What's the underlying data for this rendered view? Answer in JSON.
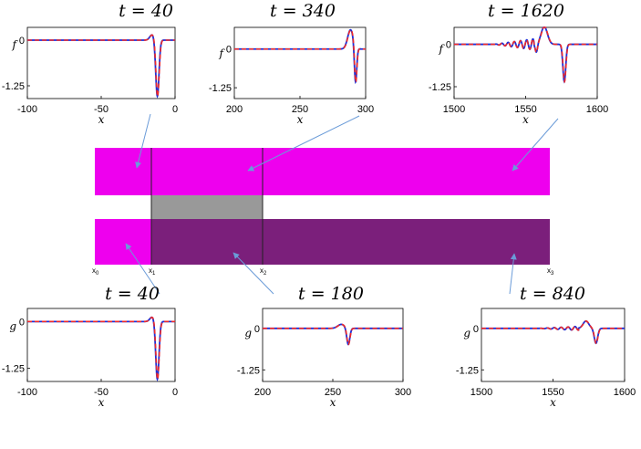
{
  "figure": {
    "colors": {
      "magenta": "#ee00ee",
      "gray": "#999999",
      "purple": "#7b1f7b",
      "numeric_line": "#1f2fd6",
      "exact_line": "#ee2a2a",
      "arrow": "#6a9bd8"
    },
    "schematic": {
      "positions": [
        {
          "label": "x",
          "sub": "0"
        },
        {
          "label": "x",
          "sub": "1"
        },
        {
          "label": "x",
          "sub": "2"
        },
        {
          "label": "x",
          "sub": "3"
        }
      ]
    }
  },
  "chart_data": [
    {
      "type": "line",
      "title": "t = 40",
      "ylabel": "f",
      "xlabel": "x",
      "xlim": [
        -100,
        0
      ],
      "ylim": [
        -1.6,
        0.35
      ],
      "xticks": [
        "-100",
        "-50",
        "0"
      ],
      "yticks": [
        "0",
        "-1.25"
      ],
      "series": [
        {
          "values": "soliton near x = -12, min ≈ -1.55, preceded by small bump ≈ +0.15"
        }
      ]
    },
    {
      "type": "line",
      "title": "t = 340",
      "ylabel": "f",
      "xlabel": "x",
      "xlim": [
        200,
        300
      ],
      "ylim": [
        -1.6,
        0.7
      ],
      "xticks": [
        "200",
        "250",
        "300"
      ],
      "yticks": [
        "0",
        "-1.25"
      ],
      "series": [
        {
          "values": "hump ≈ +0.6 near x = 288, trough ≈ -1.15 near x = 292"
        }
      ]
    },
    {
      "type": "line",
      "title": "t = 1620",
      "ylabel": "f",
      "xlabel": "x",
      "xlim": [
        1500,
        1600
      ],
      "ylim": [
        -1.6,
        0.5
      ],
      "xticks": [
        "1500",
        "1550",
        "1600"
      ],
      "yticks": [
        "0",
        "-1.25"
      ],
      "series": [
        {
          "values": "oscillatory tail 1530–1556, hump ≈ +0.5 at 1563, trough ≈ -1.1 at 1577"
        }
      ]
    },
    {
      "type": "line",
      "title": "t = 40",
      "ylabel": "g",
      "xlabel": "x",
      "xlim": [
        -100,
        0
      ],
      "ylim": [
        -1.6,
        0.35
      ],
      "xticks": [
        "-100",
        "-50",
        "0"
      ],
      "yticks": [
        "0",
        "-1.25"
      ],
      "series": [
        {
          "values": "soliton near x = -12, min ≈ -1.55"
        }
      ]
    },
    {
      "type": "line",
      "title": "t = 180",
      "ylabel": "g",
      "xlabel": "x",
      "xlim": [
        200,
        300
      ],
      "ylim": [
        -1.6,
        0.6
      ],
      "xticks": [
        "200",
        "250",
        "300"
      ],
      "yticks": [
        "0",
        "-1.25"
      ],
      "series": [
        {
          "values": "small bump ≈ +0.12 near x = 258, trough ≈ -0.5 near x = 261"
        }
      ]
    },
    {
      "type": "line",
      "title": "t = 840",
      "ylabel": "g",
      "xlabel": "x",
      "xlim": [
        1500,
        1600
      ],
      "ylim": [
        -1.6,
        0.6
      ],
      "xticks": [
        "1500",
        "1550",
        "1600"
      ],
      "yticks": [
        "0",
        "-1.25"
      ],
      "series": [
        {
          "values": "small ripples 1555–1568, hump ≈ +0.2 at 1572, trough ≈ -0.45 at 1580"
        }
      ]
    }
  ]
}
